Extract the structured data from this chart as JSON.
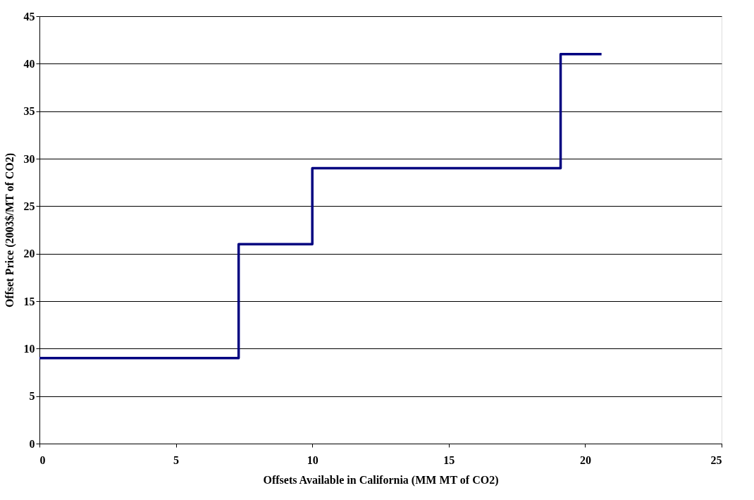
{
  "chart_data": {
    "type": "step",
    "xlabel": "Offsets Available in California (MM MT of CO2)",
    "ylabel": "Offset Price (2003$/MT of CO2)",
    "x": [
      0,
      7.3,
      10,
      19.1,
      20.6
    ],
    "series": [
      {
        "color": "#000080",
        "values": [
          9,
          21,
          29,
          41,
          41
        ]
      }
    ],
    "xlim": [
      0,
      25
    ],
    "xticks": [
      0,
      5,
      10,
      15,
      20,
      25
    ],
    "ylim": [
      0,
      45
    ],
    "yticks": [
      0,
      5,
      10,
      15,
      20,
      25,
      30,
      35,
      40,
      45
    ],
    "grid": "y",
    "marker": "none",
    "line_style": "solid"
  }
}
